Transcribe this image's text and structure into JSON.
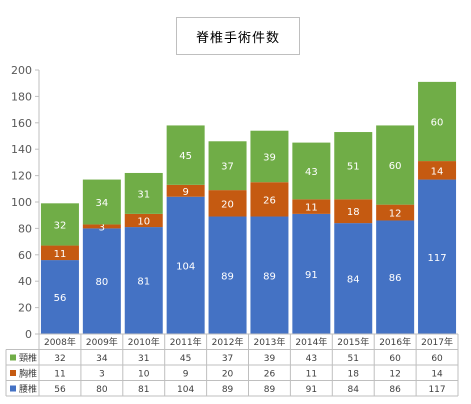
{
  "chart_data": {
    "type": "bar",
    "stacked": true,
    "title": "脊椎手術件数",
    "categories": [
      "2008年",
      "2009年",
      "2010年",
      "2011年",
      "2012年",
      "2013年",
      "2014年",
      "2015年",
      "2016年",
      "2017年"
    ],
    "series": [
      {
        "name": "腰椎",
        "color": "#4472c4",
        "values": [
          56,
          80,
          81,
          104,
          89,
          89,
          91,
          84,
          86,
          117
        ]
      },
      {
        "name": "胸椎",
        "color": "#c55a11",
        "values": [
          11,
          3,
          10,
          9,
          20,
          26,
          11,
          18,
          12,
          14
        ]
      },
      {
        "name": "頸椎",
        "color": "#70ad47",
        "values": [
          32,
          34,
          31,
          45,
          37,
          39,
          43,
          51,
          60,
          60
        ]
      }
    ],
    "table_order": [
      "頸椎",
      "胸椎",
      "腰椎"
    ],
    "ylim": [
      0,
      200
    ],
    "yticks": [
      0,
      20,
      40,
      60,
      80,
      100,
      120,
      140,
      160,
      180,
      200
    ],
    "grid": false,
    "legend": "data-table-left"
  }
}
